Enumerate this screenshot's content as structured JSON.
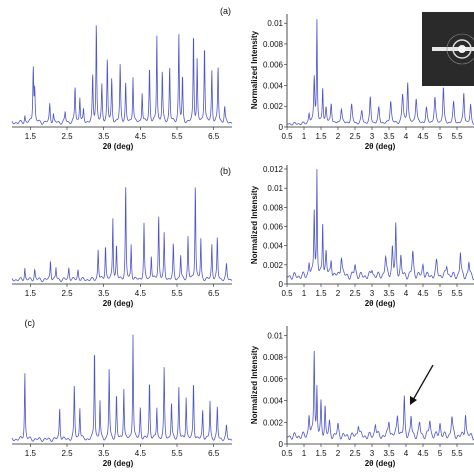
{
  "colors": {
    "line": "#4f56c9",
    "axis": "#222222",
    "background": "#ffffff",
    "inset_bg": "#2a2a2a"
  },
  "chart_data": [
    {
      "id": "a-left",
      "type": "line",
      "panel_label": "(a)",
      "xlabel": "2θ (deg)",
      "ylabel": "",
      "xlim": [
        1.0,
        7.0
      ],
      "ylim": [
        0,
        1.05
      ],
      "xticks": [
        "1.5",
        "2.5",
        "3.5",
        "4.5",
        "5.5",
        "6.5"
      ],
      "yticks": [],
      "peaks": [
        [
          1.35,
          0.07,
          0.012
        ],
        [
          1.58,
          0.55,
          0.014
        ],
        [
          1.62,
          0.3,
          0.012
        ],
        [
          2.03,
          0.18,
          0.015
        ],
        [
          2.13,
          0.08,
          0.012
        ],
        [
          2.45,
          0.1,
          0.015
        ],
        [
          2.72,
          0.35,
          0.014
        ],
        [
          2.85,
          0.25,
          0.014
        ],
        [
          2.95,
          0.12,
          0.012
        ],
        [
          3.2,
          0.45,
          0.013
        ],
        [
          3.3,
          0.98,
          0.012
        ],
        [
          3.45,
          0.35,
          0.013
        ],
        [
          3.6,
          0.62,
          0.013
        ],
        [
          3.72,
          0.42,
          0.013
        ],
        [
          3.95,
          0.55,
          0.014
        ],
        [
          4.1,
          0.38,
          0.013
        ],
        [
          4.3,
          0.45,
          0.013
        ],
        [
          4.55,
          0.3,
          0.013
        ],
        [
          4.75,
          0.55,
          0.013
        ],
        [
          4.95,
          0.85,
          0.012
        ],
        [
          5.1,
          0.5,
          0.013
        ],
        [
          5.3,
          0.55,
          0.013
        ],
        [
          5.55,
          0.85,
          0.013
        ],
        [
          5.65,
          0.45,
          0.012
        ],
        [
          5.95,
          0.9,
          0.012
        ],
        [
          6.05,
          0.6,
          0.012
        ],
        [
          6.25,
          0.78,
          0.013
        ],
        [
          6.45,
          0.5,
          0.013
        ],
        [
          6.62,
          0.55,
          0.013
        ],
        [
          6.8,
          0.15,
          0.015
        ]
      ]
    },
    {
      "id": "a-right",
      "type": "line",
      "xlabel": "2θ (deg)",
      "ylabel": "Normalized Intensity",
      "xlim": [
        0.5,
        6.0
      ],
      "ylim": [
        0,
        0.0105
      ],
      "xticks": [
        "0.5",
        "1",
        "1.5",
        "2",
        "2.5",
        "3",
        "3.5",
        "4",
        "4.5",
        "5",
        "5.5"
      ],
      "yticks": [
        "0",
        "0.002",
        "0.004",
        "0.006",
        "0.008",
        "0.01"
      ],
      "baseline": 0.0003,
      "peaks": [
        [
          1.15,
          0.001,
          0.02
        ],
        [
          1.3,
          0.0045,
          0.018
        ],
        [
          1.38,
          0.0098,
          0.013
        ],
        [
          1.55,
          0.0035,
          0.015
        ],
        [
          1.65,
          0.0015,
          0.02
        ],
        [
          1.8,
          0.002,
          0.02
        ],
        [
          2.1,
          0.0015,
          0.025
        ],
        [
          2.4,
          0.0018,
          0.025
        ],
        [
          2.7,
          0.0012,
          0.025
        ],
        [
          2.95,
          0.0025,
          0.02
        ],
        [
          3.2,
          0.0015,
          0.025
        ],
        [
          3.55,
          0.0022,
          0.025
        ],
        [
          3.9,
          0.0028,
          0.025
        ],
        [
          4.05,
          0.004,
          0.02
        ],
        [
          4.3,
          0.0025,
          0.025
        ],
        [
          4.6,
          0.0015,
          0.025
        ],
        [
          4.85,
          0.0025,
          0.025
        ],
        [
          5.1,
          0.0035,
          0.02
        ],
        [
          5.4,
          0.002,
          0.025
        ],
        [
          5.7,
          0.003,
          0.02
        ],
        [
          5.9,
          0.0018,
          0.02
        ]
      ]
    },
    {
      "id": "b-left",
      "type": "line",
      "panel_label": "(b)",
      "xlabel": "2θ (deg)",
      "ylabel": "",
      "xlim": [
        1.0,
        7.0
      ],
      "ylim": [
        0,
        1.05
      ],
      "xticks": [
        "1.5",
        "2.5",
        "3.5",
        "4.5",
        "5.5",
        "6.5"
      ],
      "yticks": [],
      "peaks": [
        [
          1.35,
          0.12,
          0.012
        ],
        [
          1.62,
          0.1,
          0.015
        ],
        [
          2.05,
          0.2,
          0.013
        ],
        [
          2.2,
          0.12,
          0.012
        ],
        [
          2.55,
          0.12,
          0.015
        ],
        [
          2.8,
          0.1,
          0.015
        ],
        [
          3.35,
          0.3,
          0.013
        ],
        [
          3.55,
          0.35,
          0.013
        ],
        [
          3.75,
          0.62,
          0.012
        ],
        [
          3.85,
          0.35,
          0.012
        ],
        [
          4.1,
          0.95,
          0.012
        ],
        [
          4.25,
          0.35,
          0.012
        ],
        [
          4.6,
          0.55,
          0.013
        ],
        [
          4.8,
          0.25,
          0.013
        ],
        [
          5.0,
          0.65,
          0.013
        ],
        [
          5.15,
          0.45,
          0.012
        ],
        [
          5.4,
          0.35,
          0.013
        ],
        [
          5.6,
          0.25,
          0.013
        ],
        [
          5.8,
          0.42,
          0.013
        ],
        [
          6.0,
          0.98,
          0.012
        ],
        [
          6.15,
          0.4,
          0.012
        ],
        [
          6.45,
          0.35,
          0.013
        ],
        [
          6.6,
          0.42,
          0.013
        ],
        [
          6.85,
          0.15,
          0.015
        ]
      ]
    },
    {
      "id": "b-right",
      "type": "line",
      "xlabel": "2θ (deg)",
      "ylabel": "Normalized Intensity",
      "xlim": [
        0.5,
        6.0
      ],
      "ylim": [
        0,
        0.012
      ],
      "xticks": [
        "0.5",
        "1",
        "1.5",
        "2",
        "2.5",
        "3",
        "3.5",
        "4",
        "4.5",
        "5",
        "5.5"
      ],
      "yticks": [
        "0",
        "0.002",
        "0.004",
        "0.006",
        "0.008",
        "0.01",
        "0.012"
      ],
      "baseline": 0.0008,
      "peaks": [
        [
          1.15,
          0.0015,
          0.02
        ],
        [
          1.3,
          0.007,
          0.016
        ],
        [
          1.38,
          0.0108,
          0.012
        ],
        [
          1.55,
          0.0058,
          0.014
        ],
        [
          1.65,
          0.0025,
          0.02
        ],
        [
          1.8,
          0.0018,
          0.02
        ],
        [
          2.1,
          0.0022,
          0.025
        ],
        [
          2.5,
          0.0012,
          0.025
        ],
        [
          3.0,
          0.0008,
          0.025
        ],
        [
          3.4,
          0.002,
          0.025
        ],
        [
          3.6,
          0.003,
          0.02
        ],
        [
          3.7,
          0.0052,
          0.016
        ],
        [
          3.85,
          0.002,
          0.02
        ],
        [
          4.2,
          0.0025,
          0.025
        ],
        [
          4.5,
          0.0012,
          0.025
        ],
        [
          4.9,
          0.0015,
          0.025
        ],
        [
          5.2,
          0.0012,
          0.025
        ],
        [
          5.6,
          0.0025,
          0.02
        ],
        [
          5.85,
          0.0015,
          0.02
        ]
      ]
    },
    {
      "id": "c-left",
      "type": "line",
      "panel_label": "(c)",
      "xlabel": "2θ (deg)",
      "ylabel": "",
      "xlim": [
        1.0,
        7.0
      ],
      "ylim": [
        0,
        1.05
      ],
      "xticks": [
        "1.5",
        "2.5",
        "3.5",
        "4.5",
        "5.5",
        "6.5"
      ],
      "yticks": [],
      "peaks": [
        [
          1.35,
          0.62,
          0.012
        ],
        [
          2.3,
          0.3,
          0.013
        ],
        [
          2.7,
          0.5,
          0.013
        ],
        [
          2.85,
          0.3,
          0.013
        ],
        [
          3.25,
          0.88,
          0.012
        ],
        [
          3.4,
          0.35,
          0.012
        ],
        [
          3.65,
          0.65,
          0.013
        ],
        [
          3.85,
          0.42,
          0.013
        ],
        [
          4.05,
          0.48,
          0.013
        ],
        [
          4.3,
          0.98,
          0.012
        ],
        [
          4.5,
          0.3,
          0.013
        ],
        [
          4.75,
          0.55,
          0.013
        ],
        [
          4.95,
          0.3,
          0.013
        ],
        [
          5.15,
          0.65,
          0.013
        ],
        [
          5.35,
          0.35,
          0.013
        ],
        [
          5.55,
          0.48,
          0.013
        ],
        [
          5.75,
          0.4,
          0.013
        ],
        [
          5.95,
          0.55,
          0.013
        ],
        [
          6.2,
          0.28,
          0.013
        ],
        [
          6.4,
          0.35,
          0.013
        ],
        [
          6.6,
          0.3,
          0.013
        ],
        [
          6.85,
          0.12,
          0.015
        ]
      ]
    },
    {
      "id": "c-right",
      "type": "line",
      "xlabel": "2θ (deg)",
      "ylabel": "Normalized Intensity",
      "xlim": [
        0.5,
        6.0
      ],
      "ylim": [
        0,
        0.0105
      ],
      "xticks": [
        "0.5",
        "1",
        "1.5",
        "2",
        "2.5",
        "3",
        "3.5",
        "4",
        "4.5",
        "5",
        "5.5"
      ],
      "yticks": [
        "0",
        "0.002",
        "0.004",
        "0.006",
        "0.008",
        "0.01"
      ],
      "baseline": 0.0007,
      "peaks": [
        [
          1.15,
          0.002,
          0.02
        ],
        [
          1.3,
          0.008,
          0.016
        ],
        [
          1.38,
          0.0043,
          0.013
        ],
        [
          1.5,
          0.003,
          0.015
        ],
        [
          1.62,
          0.0028,
          0.015
        ],
        [
          1.75,
          0.0012,
          0.02
        ],
        [
          2.0,
          0.001,
          0.025
        ],
        [
          2.6,
          0.0012,
          0.025
        ],
        [
          3.1,
          0.0012,
          0.025
        ],
        [
          3.5,
          0.0015,
          0.025
        ],
        [
          3.75,
          0.002,
          0.025
        ],
        [
          3.95,
          0.0035,
          0.018
        ],
        [
          4.15,
          0.0018,
          0.02
        ],
        [
          4.4,
          0.0012,
          0.025
        ],
        [
          4.7,
          0.0015,
          0.025
        ],
        [
          5.0,
          0.0012,
          0.025
        ],
        [
          5.35,
          0.0018,
          0.025
        ],
        [
          5.75,
          0.0022,
          0.02
        ]
      ],
      "arrow_peak_x": 4.0
    }
  ]
}
